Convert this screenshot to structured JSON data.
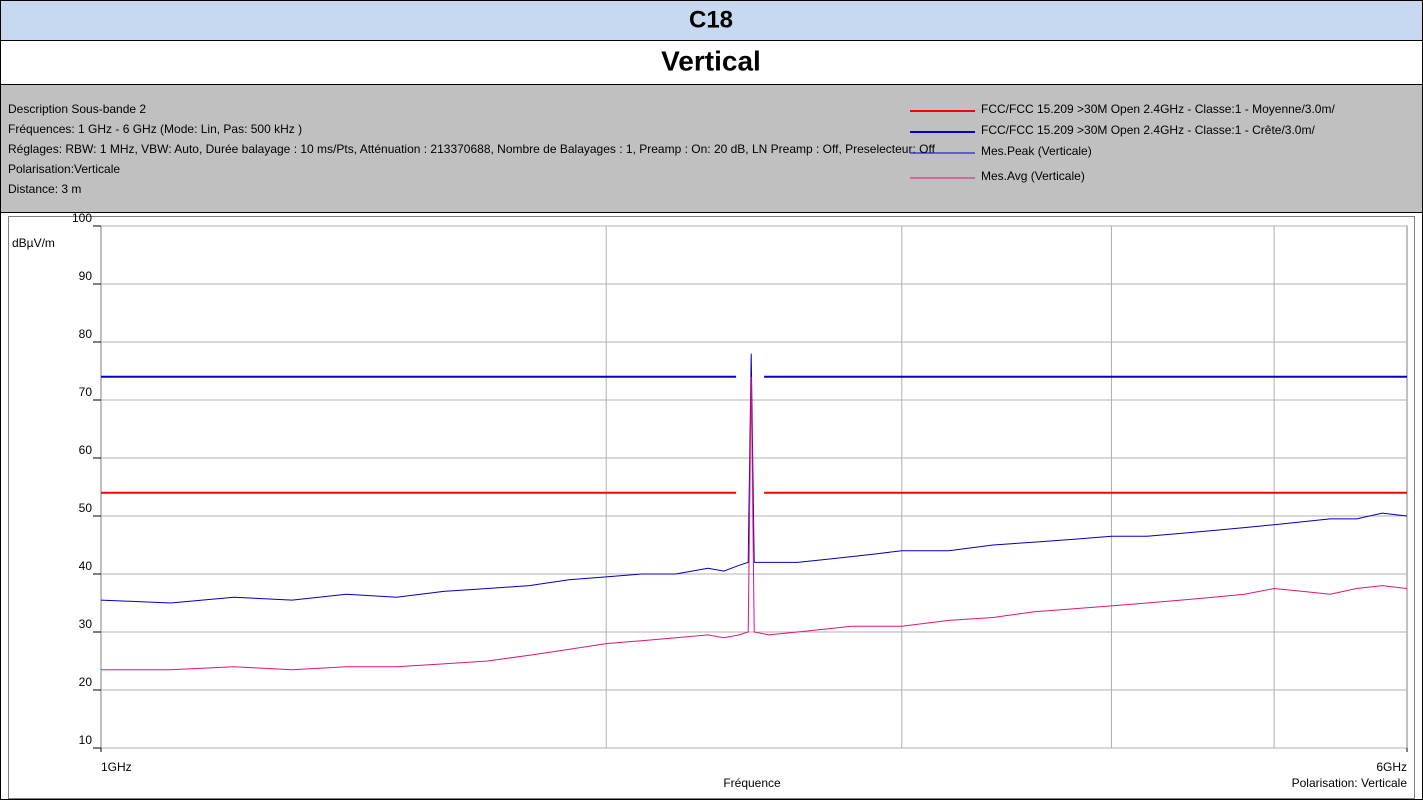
{
  "chart_data": {
    "type": "line",
    "title": "C18",
    "subtitle": "Vertical",
    "info": [
      "Description Sous-bande 2",
      "Fréquences: 1 GHz - 6 GHz (Mode: Lin, Pas: 500 kHz )",
      "Réglages: RBW: 1 MHz, VBW: Auto, Durée balayage : 10 ms/Pts, Atténuation : 213370688, Nombre de Balayages : 1, Preamp : On: 20 dB, LN Preamp : Off, Preselecteur: Off",
      "Polarisation:Verticale",
      "Distance: 3 m"
    ],
    "y_label": "dBµV/m",
    "x_label": "Fréquence",
    "x_note": "Polarisation: Verticale",
    "xlog": true,
    "xlim": [
      1,
      6
    ],
    "xticks": [
      {
        "value": 1,
        "label": "1GHz"
      },
      {
        "value": 6,
        "label": "6GHz"
      }
    ],
    "xgrid": [
      2,
      3,
      4,
      5
    ],
    "ylim": [
      10,
      100
    ],
    "yticks": [
      10,
      20,
      30,
      40,
      50,
      60,
      70,
      80,
      90,
      100
    ],
    "grid": true,
    "series": [
      {
        "name": "FCC/FCC 15.209 >30M Open 2.4GHz - Classe:1 - Moyenne/3.0m/",
        "color": "#ff0000",
        "width": 2,
        "x": [
          1,
          2.39,
          2.39,
          2.4835,
          6
        ],
        "values": [
          54,
          54,
          null,
          54,
          54
        ]
      },
      {
        "name": "FCC/FCC 15.209 >30M Open 2.4GHz - Classe:1 - Crête/3.0m/",
        "color": "#0000cc",
        "width": 2,
        "x": [
          1,
          2.39,
          2.39,
          2.4835,
          6
        ],
        "values": [
          74,
          74,
          null,
          74,
          74
        ]
      },
      {
        "name": "Mes.Peak (Verticale)",
        "color": "#0000bb",
        "width": 1,
        "x": [
          1.0,
          1.1,
          1.2,
          1.3,
          1.4,
          1.5,
          1.6,
          1.7,
          1.8,
          1.9,
          2.0,
          2.1,
          2.2,
          2.3,
          2.35,
          2.4,
          2.43,
          2.44,
          2.45,
          2.5,
          2.6,
          2.7,
          2.8,
          2.9,
          3.0,
          3.2,
          3.4,
          3.6,
          3.8,
          4.0,
          4.2,
          4.4,
          4.6,
          4.8,
          5.0,
          5.2,
          5.4,
          5.6,
          5.8,
          6.0
        ],
        "values": [
          35.5,
          35,
          36,
          35.5,
          36.5,
          36,
          37,
          37.5,
          38,
          39,
          39.5,
          40,
          40,
          41,
          40.5,
          41.5,
          42,
          78,
          42,
          42,
          42,
          42.5,
          43,
          43.5,
          44,
          44,
          45,
          45.5,
          46,
          46.5,
          46.5,
          47,
          47.5,
          48,
          48.5,
          49,
          49.5,
          49.5,
          50.5,
          50
        ]
      },
      {
        "name": "Mes.Avg (Verticale)",
        "color": "#e0147a",
        "width": 1,
        "x": [
          1.0,
          1.1,
          1.2,
          1.3,
          1.4,
          1.5,
          1.6,
          1.7,
          1.8,
          1.9,
          2.0,
          2.1,
          2.2,
          2.3,
          2.35,
          2.4,
          2.43,
          2.44,
          2.45,
          2.5,
          2.6,
          2.7,
          2.8,
          2.9,
          3.0,
          3.2,
          3.4,
          3.6,
          3.8,
          4.0,
          4.2,
          4.4,
          4.6,
          4.8,
          5.0,
          5.2,
          5.4,
          5.6,
          5.8,
          6.0
        ],
        "values": [
          23.5,
          23.5,
          24,
          23.5,
          24,
          24,
          24.5,
          25,
          26,
          27,
          28,
          28.5,
          29,
          29.5,
          29,
          29.5,
          30,
          74,
          30,
          29.5,
          30,
          30.5,
          31,
          31,
          31,
          32,
          32.5,
          33.5,
          34,
          34.5,
          35,
          35.5,
          36,
          36.5,
          37.5,
          37,
          36.5,
          37.5,
          38,
          37.5
        ]
      }
    ]
  }
}
